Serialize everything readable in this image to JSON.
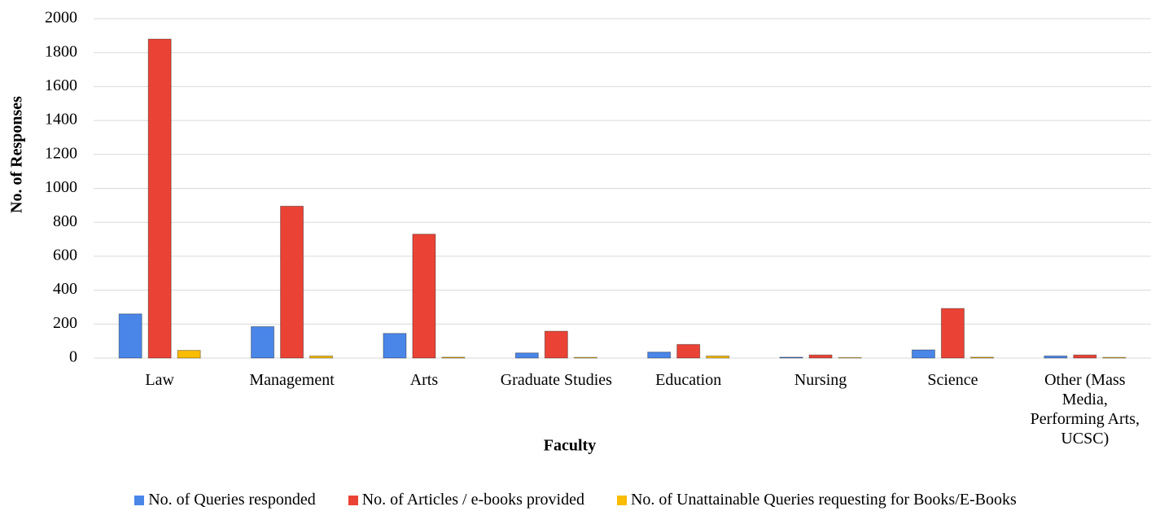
{
  "chart_data": {
    "type": "bar",
    "x_label": "Faculty",
    "y_label": "No. of Responses",
    "categories": [
      "Law",
      "Management",
      "Arts",
      "Graduate Studies",
      "Education",
      "Nursing",
      "Science",
      "Other (Mass Media, Performing Arts, UCSC)"
    ],
    "series": [
      {
        "name": "No. of Queries responded",
        "color": "#4a86e8",
        "values": [
          260,
          185,
          145,
          30,
          35,
          5,
          48,
          12
        ]
      },
      {
        "name": "No. of Articles / e-books provided",
        "color": "#ea4335",
        "values": [
          1880,
          895,
          730,
          158,
          80,
          18,
          292,
          18
        ]
      },
      {
        "name": "No. of Unattainable Queries requesting for Books/E-Books",
        "color": "#fbbc04",
        "values": [
          45,
          12,
          5,
          4,
          12,
          3,
          5,
          4
        ]
      }
    ],
    "ylim": [
      0,
      2000
    ],
    "yticks": [
      0,
      200,
      400,
      600,
      800,
      1000,
      1200,
      1400,
      1600,
      1800,
      2000
    ],
    "grid": true,
    "legend": "bottom"
  }
}
